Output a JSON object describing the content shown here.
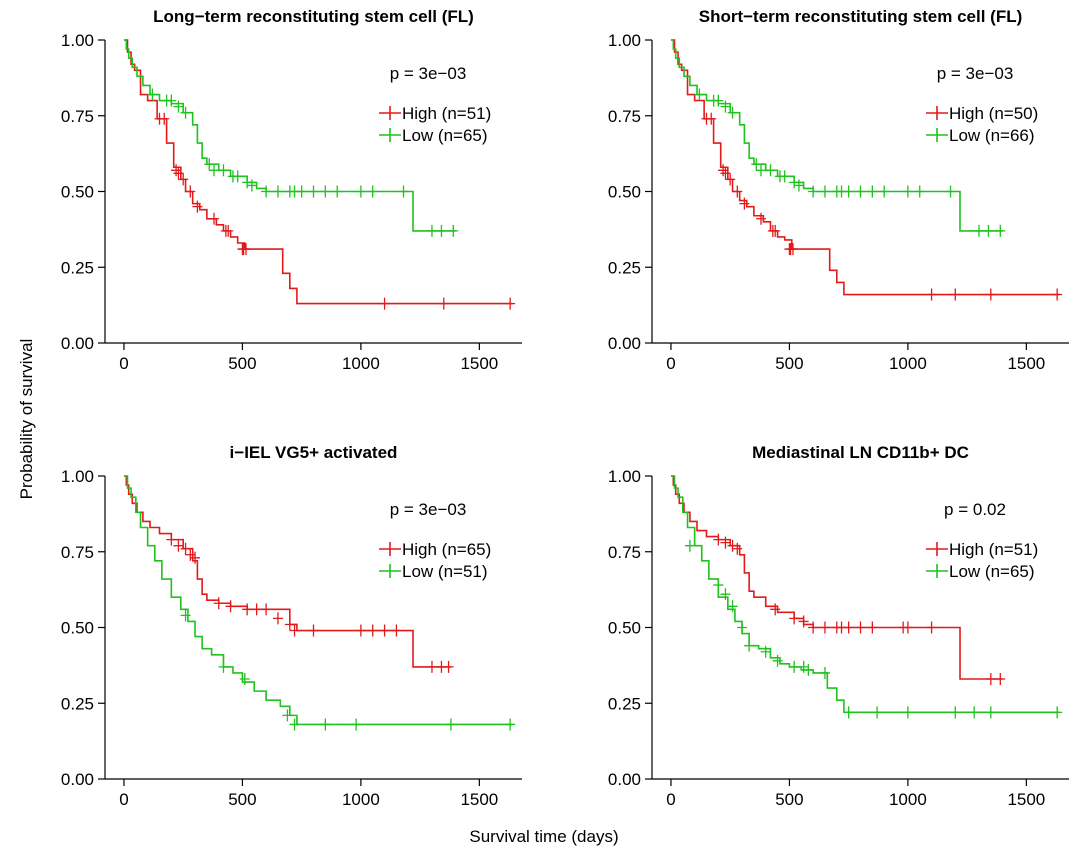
{
  "figure": {
    "xlabel": "Survival time (days)",
    "ylabel": "Probability of survival"
  },
  "colors": {
    "High": "#e31a1c",
    "Low": "#1fc21f"
  },
  "chart_data": [
    {
      "type": "line",
      "subtype": "kaplan-meier",
      "title": "Long−term reconstituting stem cell (FL)",
      "pvalue": "p =  3e−03",
      "xlim": [
        -80,
        1680
      ],
      "ylim": [
        0,
        1
      ],
      "xticks": [
        0,
        500,
        1000,
        1500
      ],
      "xtick_labels": [
        "0",
        "500",
        "1000",
        "1500"
      ],
      "yticks": [
        0,
        0.25,
        0.5,
        0.75,
        1
      ],
      "ytick_labels": [
        "0.00",
        "0.25",
        "0.50",
        "0.75",
        "1.00"
      ],
      "series": [
        {
          "name": "High (n=51)",
          "group": "High",
          "x": [
            0,
            15,
            30,
            45,
            70,
            100,
            140,
            180,
            210,
            240,
            260,
            290,
            320,
            350,
            390,
            420,
            450,
            480,
            510,
            580,
            670,
            700,
            730,
            1200,
            1640
          ],
          "y": [
            1.0,
            0.96,
            0.92,
            0.9,
            0.82,
            0.8,
            0.74,
            0.66,
            0.58,
            0.54,
            0.5,
            0.46,
            0.44,
            0.41,
            0.39,
            0.37,
            0.35,
            0.33,
            0.31,
            0.31,
            0.23,
            0.18,
            0.13,
            0.13,
            0.13
          ],
          "censor_x": [
            150,
            170,
            220,
            230,
            250,
            280,
            310,
            380,
            430,
            440,
            500,
            505,
            515,
            1100,
            1350,
            1630
          ],
          "censor_y": [
            0.74,
            0.74,
            0.57,
            0.56,
            0.54,
            0.5,
            0.45,
            0.41,
            0.37,
            0.37,
            0.31,
            0.31,
            0.31,
            0.13,
            0.13,
            0.13
          ]
        },
        {
          "name": "Low (n=65)",
          "group": "Low",
          "x": [
            0,
            10,
            20,
            35,
            55,
            80,
            110,
            150,
            200,
            250,
            290,
            310,
            330,
            350,
            400,
            450,
            520,
            560,
            600,
            1220,
            1400
          ],
          "y": [
            1.0,
            0.97,
            0.94,
            0.91,
            0.88,
            0.85,
            0.82,
            0.8,
            0.79,
            0.76,
            0.72,
            0.66,
            0.61,
            0.59,
            0.57,
            0.55,
            0.53,
            0.51,
            0.5,
            0.37,
            0.37
          ],
          "censor_x": [
            120,
            180,
            200,
            230,
            260,
            360,
            380,
            420,
            460,
            480,
            520,
            540,
            600,
            650,
            700,
            720,
            750,
            800,
            850,
            900,
            1000,
            1050,
            1180,
            1300,
            1340,
            1390
          ],
          "censor_y": [
            0.82,
            0.8,
            0.8,
            0.78,
            0.76,
            0.59,
            0.57,
            0.57,
            0.55,
            0.55,
            0.53,
            0.52,
            0.5,
            0.5,
            0.5,
            0.5,
            0.5,
            0.5,
            0.5,
            0.5,
            0.5,
            0.5,
            0.5,
            0.37,
            0.37,
            0.37
          ]
        }
      ]
    },
    {
      "type": "line",
      "subtype": "kaplan-meier",
      "title": "Short−term reconstituting stem cell (FL)",
      "pvalue": "p =  3e−03",
      "xlim": [
        -80,
        1680
      ],
      "ylim": [
        0,
        1
      ],
      "xticks": [
        0,
        500,
        1000,
        1500
      ],
      "xtick_labels": [
        "0",
        "500",
        "1000",
        "1500"
      ],
      "yticks": [
        0,
        0.25,
        0.5,
        0.75,
        1
      ],
      "ytick_labels": [
        "0.00",
        "0.25",
        "0.50",
        "0.75",
        "1.00"
      ],
      "series": [
        {
          "name": "High (n=50)",
          "group": "High",
          "x": [
            0,
            15,
            30,
            45,
            70,
            100,
            140,
            180,
            210,
            240,
            260,
            290,
            320,
            350,
            390,
            420,
            450,
            480,
            510,
            580,
            670,
            700,
            730,
            1200,
            1640
          ],
          "y": [
            1.0,
            0.96,
            0.92,
            0.9,
            0.82,
            0.8,
            0.74,
            0.66,
            0.58,
            0.54,
            0.5,
            0.47,
            0.45,
            0.42,
            0.4,
            0.37,
            0.35,
            0.34,
            0.31,
            0.31,
            0.24,
            0.2,
            0.16,
            0.16,
            0.16
          ],
          "censor_x": [
            150,
            170,
            220,
            230,
            250,
            280,
            310,
            380,
            430,
            440,
            500,
            505,
            515,
            1100,
            1200,
            1350,
            1630
          ],
          "censor_y": [
            0.74,
            0.74,
            0.57,
            0.56,
            0.54,
            0.5,
            0.46,
            0.41,
            0.37,
            0.37,
            0.31,
            0.31,
            0.31,
            0.16,
            0.16,
            0.16,
            0.16
          ]
        },
        {
          "name": "Low (n=66)",
          "group": "Low",
          "x": [
            0,
            10,
            20,
            35,
            55,
            80,
            110,
            150,
            200,
            250,
            290,
            310,
            330,
            350,
            400,
            450,
            520,
            560,
            600,
            1220,
            1400
          ],
          "y": [
            1.0,
            0.97,
            0.94,
            0.91,
            0.88,
            0.85,
            0.82,
            0.8,
            0.79,
            0.76,
            0.72,
            0.66,
            0.61,
            0.59,
            0.57,
            0.55,
            0.53,
            0.51,
            0.5,
            0.37,
            0.37
          ],
          "censor_x": [
            120,
            180,
            200,
            230,
            260,
            360,
            380,
            420,
            460,
            480,
            520,
            540,
            600,
            650,
            700,
            720,
            750,
            800,
            850,
            900,
            1000,
            1050,
            1180,
            1300,
            1340,
            1390
          ],
          "censor_y": [
            0.82,
            0.8,
            0.8,
            0.78,
            0.76,
            0.59,
            0.57,
            0.57,
            0.55,
            0.55,
            0.53,
            0.52,
            0.5,
            0.5,
            0.5,
            0.5,
            0.5,
            0.5,
            0.5,
            0.5,
            0.5,
            0.5,
            0.5,
            0.37,
            0.37,
            0.37
          ]
        }
      ]
    },
    {
      "type": "line",
      "subtype": "kaplan-meier",
      "title": "i−IEL VG5+ activated",
      "pvalue": "p =  3e−03",
      "xlim": [
        -80,
        1680
      ],
      "ylim": [
        0,
        1
      ],
      "xticks": [
        0,
        500,
        1000,
        1500
      ],
      "xtick_labels": [
        "0",
        "500",
        "1000",
        "1500"
      ],
      "yticks": [
        0,
        0.25,
        0.5,
        0.75,
        1
      ],
      "ytick_labels": [
        "0.00",
        "0.25",
        "0.50",
        "0.75",
        "1.00"
      ],
      "series": [
        {
          "name": "High (n=65)",
          "group": "High",
          "x": [
            0,
            10,
            20,
            35,
            55,
            80,
            110,
            150,
            200,
            250,
            290,
            310,
            330,
            350,
            400,
            450,
            520,
            560,
            600,
            700,
            730,
            1220,
            1380
          ],
          "y": [
            1.0,
            0.97,
            0.94,
            0.91,
            0.88,
            0.85,
            0.83,
            0.81,
            0.79,
            0.76,
            0.72,
            0.66,
            0.61,
            0.59,
            0.58,
            0.57,
            0.56,
            0.56,
            0.56,
            0.51,
            0.49,
            0.37,
            0.37
          ],
          "censor_x": [
            200,
            230,
            260,
            280,
            300,
            400,
            450,
            520,
            560,
            600,
            650,
            700,
            720,
            800,
            1000,
            1050,
            1100,
            1150,
            1300,
            1340,
            1370
          ],
          "censor_y": [
            0.79,
            0.77,
            0.76,
            0.74,
            0.73,
            0.58,
            0.57,
            0.56,
            0.56,
            0.56,
            0.53,
            0.51,
            0.49,
            0.49,
            0.49,
            0.49,
            0.49,
            0.49,
            0.37,
            0.37,
            0.37
          ]
        },
        {
          "name": "Low (n=51)",
          "group": "Low",
          "x": [
            0,
            15,
            30,
            50,
            70,
            100,
            130,
            160,
            200,
            240,
            270,
            300,
            330,
            370,
            420,
            460,
            500,
            550,
            600,
            660,
            700,
            730,
            1640
          ],
          "y": [
            1.0,
            0.96,
            0.93,
            0.88,
            0.83,
            0.77,
            0.72,
            0.66,
            0.6,
            0.56,
            0.52,
            0.47,
            0.43,
            0.41,
            0.37,
            0.35,
            0.32,
            0.29,
            0.26,
            0.24,
            0.21,
            0.18,
            0.18
          ],
          "censor_x": [
            260,
            420,
            510,
            690,
            720,
            850,
            980,
            1380,
            1630
          ],
          "censor_y": [
            0.54,
            0.37,
            0.33,
            0.21,
            0.18,
            0.18,
            0.18,
            0.18,
            0.18
          ]
        }
      ]
    },
    {
      "type": "line",
      "subtype": "kaplan-meier",
      "title": "Mediastinal LN CD11b+ DC",
      "pvalue": "p =  0.02",
      "xlim": [
        -80,
        1680
      ],
      "ylim": [
        0,
        1
      ],
      "xticks": [
        0,
        500,
        1000,
        1500
      ],
      "xtick_labels": [
        "0",
        "500",
        "1000",
        "1500"
      ],
      "yticks": [
        0,
        0.25,
        0.5,
        0.75,
        1
      ],
      "ytick_labels": [
        "0.00",
        "0.25",
        "0.50",
        "0.75",
        "1.00"
      ],
      "series": [
        {
          "name": "High (n=51)",
          "group": "High",
          "x": [
            0,
            10,
            20,
            35,
            55,
            80,
            110,
            150,
            200,
            250,
            290,
            310,
            330,
            350,
            400,
            450,
            520,
            560,
            600,
            1220,
            1400
          ],
          "y": [
            1.0,
            0.97,
            0.94,
            0.91,
            0.88,
            0.85,
            0.82,
            0.8,
            0.79,
            0.77,
            0.74,
            0.68,
            0.62,
            0.6,
            0.57,
            0.55,
            0.53,
            0.51,
            0.5,
            0.33,
            0.33
          ],
          "censor_x": [
            200,
            230,
            260,
            280,
            440,
            520,
            560,
            600,
            650,
            700,
            720,
            750,
            800,
            850,
            980,
            1000,
            1100,
            1350,
            1390
          ],
          "censor_y": [
            0.79,
            0.78,
            0.77,
            0.76,
            0.56,
            0.53,
            0.52,
            0.5,
            0.5,
            0.5,
            0.5,
            0.5,
            0.5,
            0.5,
            0.5,
            0.5,
            0.5,
            0.33,
            0.33
          ]
        },
        {
          "name": "Low (n=65)",
          "group": "Low",
          "x": [
            0,
            15,
            30,
            50,
            70,
            100,
            130,
            160,
            200,
            240,
            270,
            300,
            330,
            370,
            420,
            460,
            500,
            550,
            600,
            660,
            700,
            730,
            1640
          ],
          "y": [
            1.0,
            0.96,
            0.93,
            0.88,
            0.83,
            0.77,
            0.72,
            0.66,
            0.6,
            0.56,
            0.52,
            0.48,
            0.44,
            0.43,
            0.4,
            0.38,
            0.37,
            0.36,
            0.35,
            0.3,
            0.26,
            0.22,
            0.22
          ],
          "censor_x": [
            80,
            200,
            230,
            260,
            300,
            330,
            400,
            450,
            520,
            560,
            580,
            650,
            750,
            870,
            1000,
            1200,
            1280,
            1350,
            1630
          ],
          "censor_y": [
            0.77,
            0.64,
            0.61,
            0.57,
            0.5,
            0.44,
            0.42,
            0.39,
            0.37,
            0.37,
            0.36,
            0.35,
            0.22,
            0.22,
            0.22,
            0.22,
            0.22,
            0.22,
            0.22
          ]
        }
      ]
    }
  ]
}
